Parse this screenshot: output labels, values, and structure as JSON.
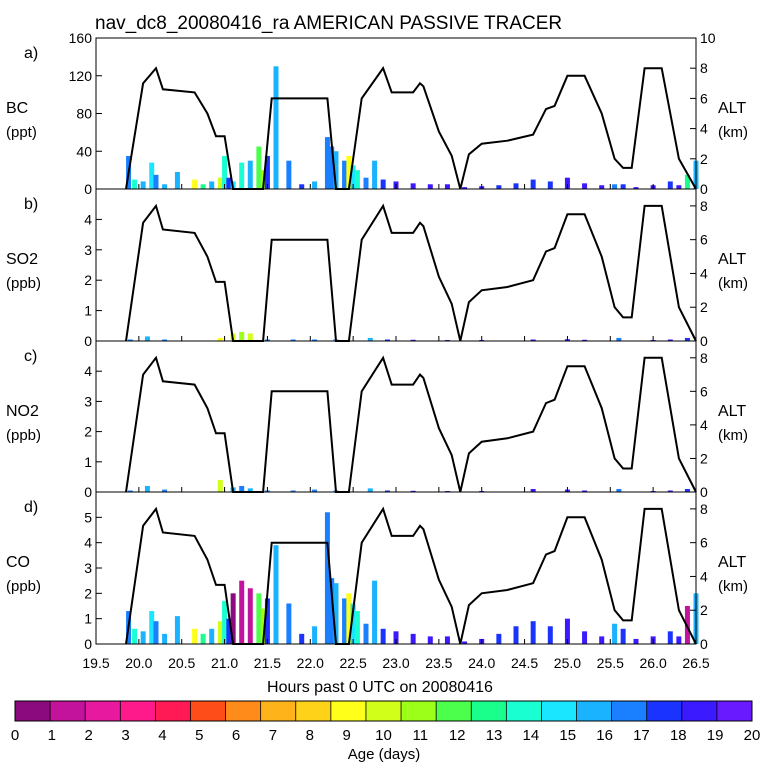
{
  "title": "nav_dc8_20080416_ra AMERICAN PASSIVE TRACER",
  "chart_data": {
    "type": "area",
    "title": "nav_dc8_20080416_ra AMERICAN PASSIVE TRACER",
    "xlabel": "Hours past 0 UTC on 20080416",
    "xlim": [
      19.5,
      26.5
    ],
    "x_ticks": [
      "19.5",
      "20.0",
      "20.5",
      "21.0",
      "21.5",
      "22.0",
      "22.5",
      "23.0",
      "23.5",
      "24.0",
      "24.5",
      "25.0",
      "25.5",
      "26.0",
      "26.5"
    ],
    "altitude_track": {
      "label": "ALT",
      "unit": "(km)",
      "ylim": [
        0,
        10
      ],
      "color": "#000000",
      "x": [
        19.85,
        20.05,
        20.2,
        20.28,
        20.65,
        20.8,
        20.9,
        21.0,
        21.1,
        21.3,
        21.45,
        21.55,
        21.8,
        21.95,
        22.05,
        22.2,
        22.3,
        22.45,
        22.6,
        22.85,
        22.95,
        23.2,
        23.28,
        23.32,
        23.5,
        23.65,
        23.75,
        23.85,
        24.0,
        24.3,
        24.6,
        24.75,
        24.85,
        25.0,
        25.2,
        25.4,
        25.55,
        25.65,
        25.75,
        25.9,
        26.1,
        26.3,
        26.5
      ],
      "y": [
        0,
        7,
        8,
        6.6,
        6.4,
        5,
        3.5,
        3.5,
        0,
        0,
        0,
        6,
        6,
        6,
        6,
        6,
        0,
        0,
        6,
        8,
        6.4,
        6.4,
        7,
        6.8,
        3.8,
        2.2,
        0,
        2.3,
        3,
        3.2,
        3.6,
        5.3,
        5.5,
        7.5,
        7.5,
        5,
        2,
        1.4,
        1.4,
        8,
        8,
        2,
        0
      ]
    },
    "panels": [
      {
        "id": "a)",
        "species": "BC",
        "unit": "(ppt)",
        "ylim": [
          0,
          160
        ],
        "yticks": [
          "0",
          "40",
          "80",
          "120",
          "160"
        ],
        "alt_ticks": [
          "0",
          "2",
          "4",
          "6",
          "8",
          "10"
        ]
      },
      {
        "id": "b)",
        "species": "SO2",
        "unit": "(ppb)",
        "ylim": [
          0,
          5
        ],
        "yticks": [
          "0",
          "1",
          "2",
          "3",
          "4"
        ],
        "alt_ticks": [
          "0",
          "2",
          "4",
          "6",
          "8"
        ]
      },
      {
        "id": "c)",
        "species": "NO2",
        "unit": "(ppb)",
        "ylim": [
          0,
          5
        ],
        "yticks": [
          "0",
          "1",
          "2",
          "3",
          "4"
        ],
        "alt_ticks": [
          "0",
          "2",
          "4",
          "6",
          "8"
        ]
      },
      {
        "id": "d)",
        "species": "CO",
        "unit": "(ppb)",
        "ylim": [
          0,
          6
        ],
        "yticks": [
          "0",
          "1",
          "2",
          "3",
          "4",
          "5"
        ],
        "alt_ticks": [
          "0",
          "2",
          "4",
          "6",
          "8"
        ]
      }
    ],
    "series": [
      {
        "name": "BC",
        "x": [
          19.88,
          19.95,
          20.05,
          20.15,
          20.2,
          20.3,
          20.45,
          20.65,
          20.75,
          20.85,
          20.95,
          21.0,
          21.05,
          21.1,
          21.2,
          21.3,
          21.4,
          21.45,
          21.5,
          21.6,
          21.75,
          21.9,
          22.05,
          22.2,
          22.25,
          22.3,
          22.4,
          22.45,
          22.5,
          22.55,
          22.65,
          22.75,
          22.85,
          23.0,
          23.2,
          23.4,
          23.6,
          23.8,
          24.0,
          24.2,
          24.4,
          24.6,
          24.8,
          25.0,
          25.2,
          25.4,
          25.55,
          25.65,
          25.8,
          26.0,
          26.2,
          26.3,
          26.4,
          26.5
        ],
        "y": [
          35,
          10,
          8,
          28,
          15,
          5,
          18,
          10,
          5,
          8,
          12,
          35,
          12,
          8,
          28,
          30,
          45,
          20,
          35,
          130,
          30,
          5,
          8,
          55,
          45,
          40,
          30,
          35,
          25,
          20,
          12,
          30,
          10,
          8,
          6,
          5,
          5,
          2,
          3,
          4,
          6,
          10,
          8,
          12,
          6,
          4,
          5,
          5,
          2,
          4,
          8,
          4,
          15,
          30
        ],
        "min_age_days": [
          17,
          14,
          16,
          15,
          17,
          16,
          16,
          9,
          13,
          16,
          10,
          14,
          18,
          15,
          14,
          16,
          12,
          11,
          18,
          16,
          17,
          18,
          16,
          17,
          17,
          16,
          17,
          9,
          15,
          14,
          17,
          16,
          18,
          19,
          19,
          19,
          19,
          19,
          19,
          18,
          18,
          18,
          18,
          19,
          19,
          19,
          17,
          18,
          19,
          19,
          18,
          19,
          13,
          16
        ]
      },
      {
        "name": "SO2",
        "x": [
          19.9,
          20.1,
          20.3,
          20.95,
          21.1,
          21.2,
          21.3,
          21.5,
          21.8,
          22.05,
          22.3,
          22.7,
          22.9,
          23.2,
          23.6,
          24.0,
          24.6,
          25.0,
          25.2,
          25.6,
          26.0,
          26.2,
          26.4
        ],
        "y": [
          0.05,
          0.15,
          0.05,
          0.1,
          0.25,
          0.3,
          0.25,
          0.05,
          0.05,
          0.05,
          0.05,
          0.1,
          0.05,
          0.04,
          0.03,
          0.02,
          0.05,
          0.06,
          0.04,
          0.1,
          0.03,
          0.05,
          0.1
        ],
        "min_age_days": [
          17,
          16,
          17,
          9,
          10,
          11,
          10,
          17,
          17,
          17,
          17,
          16,
          18,
          19,
          19,
          19,
          19,
          19,
          19,
          17,
          19,
          19,
          18
        ]
      },
      {
        "name": "NO2",
        "x": [
          19.9,
          20.1,
          20.3,
          20.95,
          21.1,
          21.2,
          21.3,
          21.5,
          21.8,
          22.05,
          22.3,
          22.7,
          22.9,
          23.2,
          23.6,
          24.0,
          24.6,
          25.0,
          25.2,
          25.6,
          26.0,
          26.2,
          26.4
        ],
        "y": [
          0.05,
          0.2,
          0.08,
          0.4,
          0.15,
          0.2,
          0.12,
          0.05,
          0.05,
          0.08,
          0.05,
          0.12,
          0.05,
          0.04,
          0.03,
          0.02,
          0.1,
          0.08,
          0.05,
          0.1,
          0.03,
          0.05,
          0.1
        ],
        "min_age_days": [
          17,
          16,
          17,
          10,
          16,
          17,
          16,
          17,
          17,
          17,
          17,
          16,
          18,
          19,
          19,
          19,
          19,
          19,
          19,
          17,
          19,
          19,
          18
        ]
      },
      {
        "name": "CO",
        "x": [
          19.88,
          19.95,
          20.05,
          20.15,
          20.2,
          20.3,
          20.45,
          20.65,
          20.75,
          20.85,
          20.95,
          21.0,
          21.05,
          21.1,
          21.2,
          21.3,
          21.4,
          21.45,
          21.5,
          21.6,
          21.75,
          21.9,
          22.05,
          22.2,
          22.25,
          22.3,
          22.4,
          22.45,
          22.5,
          22.55,
          22.65,
          22.75,
          22.85,
          23.0,
          23.2,
          23.4,
          23.6,
          23.8,
          24.0,
          24.2,
          24.4,
          24.6,
          24.8,
          25.0,
          25.2,
          25.4,
          25.55,
          25.65,
          25.8,
          26.0,
          26.2,
          26.3,
          26.4,
          26.5
        ],
        "y": [
          1.3,
          0.6,
          0.5,
          1.3,
          0.9,
          0.4,
          1.1,
          0.6,
          0.4,
          0.6,
          0.9,
          1.7,
          1.0,
          2.0,
          2.5,
          2.2,
          2.0,
          1.4,
          1.8,
          3.9,
          1.6,
          0.4,
          0.7,
          5.2,
          2.6,
          2.4,
          1.8,
          2.0,
          1.6,
          1.3,
          0.8,
          2.5,
          0.6,
          0.5,
          0.4,
          0.3,
          0.3,
          0.1,
          0.2,
          0.4,
          0.7,
          0.9,
          0.7,
          1.0,
          0.5,
          0.3,
          0.8,
          0.6,
          0.2,
          0.3,
          0.5,
          0.3,
          1.5,
          2.0
        ],
        "min_age_days": [
          17,
          14,
          16,
          15,
          17,
          16,
          16,
          9,
          13,
          16,
          10,
          14,
          18,
          0,
          1,
          1,
          12,
          11,
          18,
          16,
          17,
          18,
          16,
          17,
          17,
          16,
          17,
          9,
          15,
          14,
          17,
          16,
          18,
          19,
          19,
          19,
          19,
          19,
          19,
          18,
          18,
          18,
          18,
          19,
          19,
          19,
          16,
          18,
          19,
          19,
          18,
          19,
          1,
          16
        ]
      }
    ],
    "colorbar": {
      "label": "Age (days)",
      "range": [
        0,
        20
      ],
      "tick_labels": [
        "0",
        "1",
        "2",
        "3",
        "4",
        "5",
        "6",
        "7",
        "8",
        "9",
        "10",
        "11",
        "12",
        "13",
        "14",
        "15",
        "16",
        "17",
        "18",
        "19",
        "20"
      ],
      "colors": [
        "#8b0a7e",
        "#c3129c",
        "#e6199f",
        "#ff1a8c",
        "#ff1a55",
        "#ff4d1a",
        "#ff8c1a",
        "#ffb31a",
        "#ffd21a",
        "#ffff1a",
        "#d2ff1a",
        "#9bff1a",
        "#4dff4d",
        "#1aff8c",
        "#1affd2",
        "#1ae6ff",
        "#1ab3ff",
        "#1a80ff",
        "#1a33ff",
        "#3b1aff",
        "#6a1aff"
      ]
    }
  }
}
